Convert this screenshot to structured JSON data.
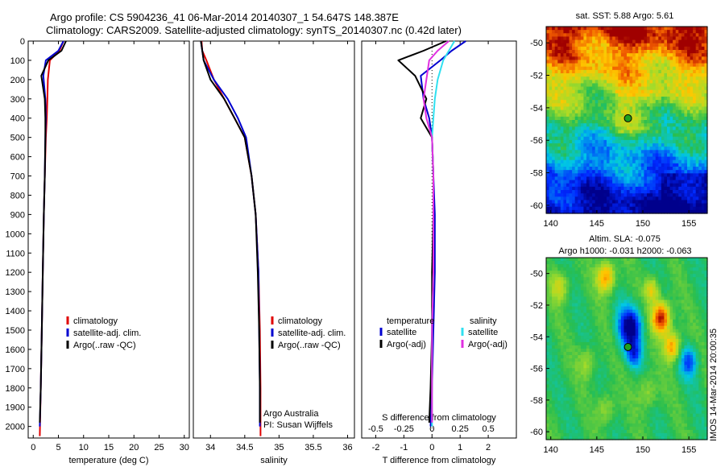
{
  "header": {
    "title_line1": "Argo profile: CS 5904236_41 06-Mar-2014 20140307_1 54.647S 148.387E",
    "title_line2": "Climatology: CARS2009. Satellite-adjusted climatology: synTS_20140307.nc (0.42d later)"
  },
  "colors": {
    "climatology": "#e00000",
    "satellite": "#0000d0",
    "argo": "#000000",
    "sal_satellite": "#30e0f0",
    "sal_argo": "#e030e0"
  },
  "chart_data": [
    {
      "type": "line",
      "name": "temperature-profile",
      "xlabel": "temperature (deg C)",
      "ylabel": "",
      "xlim": [
        -1,
        31
      ],
      "ylim": [
        2060,
        0
      ],
      "x_ticks": [
        0,
        5,
        10,
        15,
        20,
        25,
        30
      ],
      "y_ticks": [
        0,
        100,
        200,
        300,
        400,
        500,
        600,
        700,
        800,
        900,
        1000,
        1100,
        1200,
        1300,
        1400,
        1500,
        1600,
        1700,
        1800,
        1900,
        2000
      ],
      "legend": [
        "climatology",
        "satellite-adj. clim.",
        "Argo(..raw -QC)"
      ],
      "legend_position": "center",
      "series": [
        {
          "name": "climatology",
          "x": [
            6.0,
            5.2,
            3.3,
            2.9,
            2.8,
            2.7,
            2.5,
            2.3,
            2.1,
            1.9,
            1.7,
            1.5,
            1.3
          ],
          "y": [
            0,
            50,
            100,
            200,
            300,
            400,
            500,
            700,
            900,
            1200,
            1500,
            1800,
            2050
          ]
        },
        {
          "name": "satellite-adj. clim.",
          "x": [
            6.0,
            5.0,
            2.5,
            2.0,
            2.4,
            2.5,
            2.4,
            2.3,
            2.1,
            1.9,
            1.7,
            1.5,
            1.3
          ],
          "y": [
            0,
            50,
            100,
            180,
            300,
            400,
            500,
            700,
            900,
            1200,
            1500,
            1800,
            2000
          ]
        },
        {
          "name": "Argo(..raw -QC)",
          "x": [
            6.5,
            5.6,
            3.0,
            1.6,
            2.3,
            2.4,
            2.4,
            2.3,
            2.1,
            1.9,
            1.7,
            1.5,
            1.3
          ],
          "y": [
            0,
            50,
            100,
            180,
            300,
            400,
            500,
            700,
            900,
            1200,
            1500,
            1800,
            1980
          ]
        }
      ]
    },
    {
      "type": "line",
      "name": "salinity-profile",
      "xlabel": "salinity",
      "xlim": [
        33.75,
        36.1
      ],
      "ylim": [
        2060,
        0
      ],
      "x_ticks": [
        34,
        34.5,
        35,
        35.5,
        36
      ],
      "legend": [
        "climatology",
        "satellite-adj. clim.",
        "Argo(..raw -QC)"
      ],
      "legend_position": "center",
      "annotations": [
        "Argo Australia",
        "PI: Susan Wijffels"
      ],
      "series": [
        {
          "name": "climatology",
          "x": [
            33.87,
            33.88,
            33.94,
            34.05,
            34.2,
            34.35,
            34.5,
            34.6,
            34.66,
            34.7,
            34.72,
            34.73,
            34.73
          ],
          "y": [
            0,
            50,
            100,
            200,
            300,
            400,
            500,
            700,
            900,
            1200,
            1500,
            1800,
            2050
          ]
        },
        {
          "name": "satellite-adj. clim.",
          "x": [
            33.86,
            33.88,
            33.9,
            34.05,
            34.25,
            34.4,
            34.52,
            34.6,
            34.66,
            34.7,
            34.71,
            34.72,
            34.72
          ],
          "y": [
            0,
            50,
            100,
            200,
            300,
            400,
            500,
            700,
            900,
            1200,
            1500,
            1800,
            2000
          ]
        },
        {
          "name": "Argo(..raw -QC)",
          "x": [
            33.86,
            33.88,
            33.9,
            34.0,
            34.2,
            34.35,
            34.5,
            34.6,
            34.66,
            34.69,
            34.71,
            34.72,
            34.72
          ],
          "y": [
            0,
            50,
            100,
            200,
            300,
            400,
            500,
            700,
            900,
            1200,
            1500,
            1800,
            1980
          ]
        }
      ]
    },
    {
      "type": "line",
      "name": "difference-profile",
      "xlabel": "T difference from climatology",
      "top_axis_label": "S difference from climatology",
      "xlim": [
        -2.5,
        3.0
      ],
      "ylim": [
        2060,
        0
      ],
      "x_ticks": [
        -2,
        -1,
        0,
        1,
        2
      ],
      "top_ticks": [
        "-0.5",
        "-0.25",
        "0",
        "0.25",
        "0.5"
      ],
      "legend_temperature_title": "temperature",
      "legend_salinity_title": "salinity",
      "legend_temperature": [
        "satellite",
        "Argo(-adj)"
      ],
      "legend_salinity": [
        "satellite",
        "Argo(-adj)"
      ],
      "legend_position": "center",
      "series": [
        {
          "name": "T satellite",
          "x": [
            1.2,
            0.7,
            0.3,
            -0.4,
            -0.3,
            -0.1,
            0.0,
            0.05,
            0.1,
            0.1,
            0.05,
            0.0,
            -0.05
          ],
          "y": [
            0,
            50,
            100,
            180,
            300,
            400,
            500,
            700,
            900,
            1200,
            1500,
            1800,
            2000
          ]
        },
        {
          "name": "T Argo(-adj)",
          "x": [
            0.5,
            -0.3,
            -1.2,
            -0.6,
            -0.2,
            -0.4,
            0.0,
            0.05,
            0.05,
            0.0,
            0.0,
            -0.05,
            -0.1
          ],
          "y": [
            0,
            50,
            100,
            180,
            300,
            400,
            500,
            700,
            900,
            1200,
            1500,
            1800,
            1980
          ]
        },
        {
          "name": "S satellite",
          "x": [
            0.8,
            0.6,
            0.4,
            0.2,
            0.1,
            0.05,
            0.0,
            0.05,
            0.05,
            0.05,
            0.0,
            0.0,
            0.0
          ],
          "y": [
            0,
            50,
            100,
            200,
            300,
            400,
            500,
            700,
            900,
            1200,
            1500,
            1800,
            2000
          ]
        },
        {
          "name": "S Argo(-adj)",
          "x": [
            0.6,
            0.2,
            -0.1,
            -0.2,
            -0.3,
            -0.2,
            0.0,
            0.05,
            0.05,
            0.05,
            0.0,
            0.0,
            0.0
          ],
          "y": [
            0,
            50,
            100,
            200,
            300,
            400,
            500,
            700,
            900,
            1200,
            1500,
            1800,
            1980
          ]
        }
      ]
    },
    {
      "type": "heatmap",
      "name": "sst-map",
      "title": "sat. SST: 5.88 Argo: 5.61",
      "xlim": [
        139.5,
        157
      ],
      "ylim": [
        -60.5,
        -49
      ],
      "x_ticks": [
        140,
        145,
        150,
        155
      ],
      "y_ticks": [
        -50,
        -52,
        -54,
        -56,
        -58,
        -60
      ],
      "marker": {
        "lon": 148.387,
        "lat": -54.647
      }
    },
    {
      "type": "heatmap",
      "name": "sla-map",
      "title": "Altim. SLA: -0.075",
      "subtitle": "Argo h1000: -0.031 h2000: -0.063",
      "xlim": [
        139.5,
        157
      ],
      "ylim": [
        -60.5,
        -49
      ],
      "x_ticks": [
        140,
        145,
        150,
        155
      ],
      "y_ticks": [
        -50,
        -52,
        -54,
        -56,
        -58,
        -60
      ],
      "marker": {
        "lon": 148.387,
        "lat": -54.647
      }
    }
  ],
  "footer": {
    "stamp": "IMOS 14-Mar-2014 20:00:35"
  }
}
